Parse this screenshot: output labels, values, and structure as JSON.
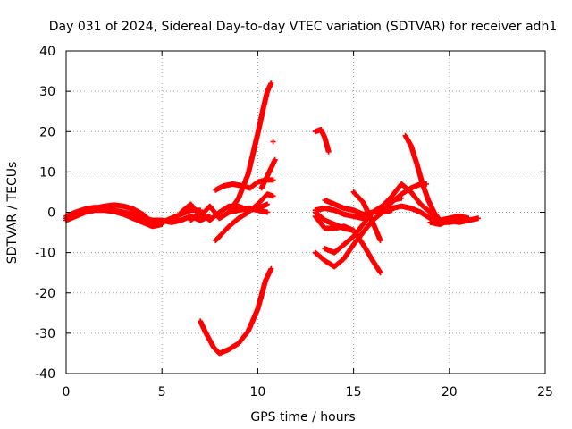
{
  "chart_data": {
    "type": "scatter",
    "title": "Day 031 of 2024, Sidereal Day-to-day VTEC variation (SDTVAR) for receiver adh1",
    "xlabel": "GPS time / hours",
    "ylabel": "SDTVAR / TECUs",
    "xlim": [
      0,
      25
    ],
    "ylim": [
      -40,
      40
    ],
    "xticks": [
      "0",
      "5",
      "10",
      "15",
      "20",
      "25"
    ],
    "yticks": [
      "40",
      "30",
      "20",
      "10",
      "0",
      "-10",
      "-20",
      "-30",
      "-40"
    ],
    "grid": true,
    "marker": "plus",
    "color": "#ff0000",
    "tracks": [
      {
        "points": [
          [
            0.0,
            -1.5
          ],
          [
            0.5,
            -0.5
          ],
          [
            1.0,
            0.5
          ],
          [
            1.5,
            1.0
          ],
          [
            2.0,
            1.5
          ],
          [
            2.5,
            1.8
          ],
          [
            3.0,
            1.5
          ],
          [
            3.5,
            0.8
          ],
          [
            4.0,
            -0.5
          ],
          [
            4.5,
            -2.5
          ],
          [
            5.0,
            -2.5
          ],
          [
            5.5,
            -1.5
          ],
          [
            6.0,
            -0.5
          ],
          [
            6.5,
            0.5
          ],
          [
            7.0,
            0.5
          ]
        ]
      },
      {
        "points": [
          [
            0.0,
            -1.0
          ],
          [
            0.5,
            0.0
          ],
          [
            1.0,
            0.8
          ],
          [
            1.5,
            1.2
          ],
          [
            2.0,
            1.0
          ],
          [
            2.5,
            0.5
          ],
          [
            3.0,
            0.0
          ],
          [
            3.5,
            -0.5
          ],
          [
            4.0,
            -1.5
          ],
          [
            4.5,
            -2.0
          ],
          [
            5.0,
            -2.0
          ],
          [
            5.5,
            -2.5
          ],
          [
            6.0,
            -2.0
          ],
          [
            6.5,
            -1.0
          ],
          [
            7.0,
            -2.0
          ],
          [
            7.5,
            -1.0
          ]
        ]
      },
      {
        "points": [
          [
            0.0,
            -2.0
          ],
          [
            0.5,
            -1.0
          ],
          [
            1.0,
            0.0
          ],
          [
            1.5,
            0.5
          ],
          [
            2.0,
            0.5
          ],
          [
            2.5,
            0.2
          ],
          [
            3.0,
            -0.5
          ],
          [
            3.5,
            -1.5
          ],
          [
            4.0,
            -2.5
          ],
          [
            4.5,
            -3.5
          ],
          [
            5.0,
            -3.0
          ]
        ]
      },
      {
        "points": [
          [
            6.0,
            0.0
          ],
          [
            6.5,
            2.0
          ],
          [
            7.0,
            -1.0
          ],
          [
            7.5,
            1.5
          ],
          [
            8.0,
            -1.5
          ],
          [
            8.5,
            0.0
          ],
          [
            9.0,
            0.5
          ],
          [
            9.5,
            1.0
          ],
          [
            10.0,
            0.5
          ],
          [
            10.5,
            0.0
          ]
        ]
      },
      {
        "points": [
          [
            6.5,
            -2.0
          ],
          [
            7.0,
            0.0
          ],
          [
            7.5,
            -2.0
          ],
          [
            8.0,
            0.0
          ],
          [
            8.5,
            1.5
          ],
          [
            9.0,
            1.5
          ],
          [
            9.5,
            0.5
          ],
          [
            10.0,
            1.0
          ],
          [
            10.5,
            2.0
          ]
        ]
      },
      {
        "points": [
          [
            7.8,
            -7.0
          ],
          [
            8.0,
            -6.0
          ],
          [
            8.5,
            -3.5
          ],
          [
            9.0,
            -1.5
          ],
          [
            9.5,
            0.0
          ],
          [
            10.0,
            2.0
          ],
          [
            10.5,
            4.5
          ],
          [
            10.8,
            4.0
          ]
        ]
      },
      {
        "points": [
          [
            7.8,
            5.5
          ],
          [
            8.2,
            6.5
          ],
          [
            8.7,
            7.0
          ],
          [
            9.2,
            6.5
          ],
          [
            9.6,
            6.0
          ],
          [
            10.0,
            7.5
          ],
          [
            10.4,
            8.0
          ],
          [
            10.8,
            8.0
          ]
        ]
      },
      {
        "points": [
          [
            10.2,
            6.0
          ],
          [
            10.5,
            9.0
          ],
          [
            10.8,
            12.0
          ],
          [
            10.9,
            13.0
          ]
        ]
      },
      {
        "points": [
          [
            8.5,
            0.0
          ],
          [
            9.0,
            3.5
          ],
          [
            9.5,
            9.5
          ],
          [
            10.0,
            19.5
          ],
          [
            10.3,
            26.0
          ],
          [
            10.5,
            30.0
          ],
          [
            10.7,
            32.0
          ]
        ]
      },
      {
        "points": [
          [
            7.0,
            -27.0
          ],
          [
            7.3,
            -30.0
          ],
          [
            7.7,
            -33.5
          ],
          [
            8.0,
            -35.0
          ],
          [
            8.5,
            -34.0
          ],
          [
            9.0,
            -32.5
          ],
          [
            9.5,
            -29.5
          ],
          [
            10.0,
            -24.0
          ],
          [
            10.4,
            -17.0
          ],
          [
            10.7,
            -14.0
          ]
        ]
      },
      {
        "points": [
          [
            13.0,
            20.0
          ],
          [
            13.3,
            20.5
          ],
          [
            13.5,
            18.5
          ],
          [
            13.7,
            15.0
          ]
        ]
      },
      {
        "points": [
          [
            13.0,
            0.0
          ],
          [
            13.5,
            -2.0
          ],
          [
            14.0,
            -3.0
          ],
          [
            14.5,
            -4.0
          ],
          [
            15.0,
            -4.5
          ]
        ]
      },
      {
        "points": [
          [
            13.0,
            -1.0
          ],
          [
            13.5,
            -4.0
          ],
          [
            14.0,
            -4.0
          ],
          [
            14.5,
            -3.5
          ],
          [
            15.0,
            -4.5
          ],
          [
            15.5,
            -8.0
          ],
          [
            16.0,
            -12.0
          ],
          [
            16.4,
            -15.0
          ]
        ]
      },
      {
        "points": [
          [
            13.0,
            -10.0
          ],
          [
            13.5,
            -12.0
          ],
          [
            14.0,
            -13.5
          ],
          [
            14.5,
            -11.5
          ],
          [
            15.0,
            -8.0
          ],
          [
            15.5,
            -5.0
          ],
          [
            16.0,
            -2.0
          ],
          [
            16.5,
            0.0
          ],
          [
            17.0,
            0.5
          ]
        ]
      },
      {
        "points": [
          [
            13.5,
            -9.0
          ],
          [
            14.0,
            -10.0
          ],
          [
            14.5,
            -8.0
          ],
          [
            15.0,
            -6.0
          ],
          [
            15.5,
            -3.0
          ],
          [
            16.0,
            0.0
          ],
          [
            16.5,
            1.5
          ],
          [
            17.0,
            3.0
          ],
          [
            17.5,
            3.5
          ]
        ]
      },
      {
        "points": [
          [
            13.5,
            3.0
          ],
          [
            14.0,
            2.0
          ],
          [
            14.5,
            1.0
          ],
          [
            15.0,
            0.5
          ],
          [
            15.5,
            -0.5
          ],
          [
            16.0,
            0.0
          ],
          [
            16.5,
            1.5
          ],
          [
            17.0,
            4.0
          ],
          [
            17.5,
            7.0
          ],
          [
            18.0,
            5.0
          ],
          [
            18.5,
            2.0
          ],
          [
            19.0,
            0.0
          ],
          [
            19.5,
            -2.5
          ],
          [
            20.0,
            -2.5
          ],
          [
            20.5,
            -2.0
          ],
          [
            21.0,
            -2.0
          ],
          [
            21.5,
            -1.5
          ]
        ]
      },
      {
        "points": [
          [
            13.0,
            0.5
          ],
          [
            13.5,
            1.0
          ],
          [
            14.0,
            0.5
          ],
          [
            14.5,
            -0.5
          ],
          [
            15.0,
            -1.0
          ],
          [
            15.5,
            -1.5
          ],
          [
            16.0,
            0.0
          ],
          [
            16.5,
            0.5
          ],
          [
            17.0,
            1.0
          ],
          [
            17.5,
            1.5
          ],
          [
            18.0,
            1.0
          ],
          [
            18.5,
            0.0
          ],
          [
            19.0,
            -1.5
          ],
          [
            19.5,
            -2.0
          ],
          [
            20.0,
            -1.5
          ],
          [
            20.5,
            -1.0
          ],
          [
            21.0,
            -1.5
          ]
        ]
      },
      {
        "points": [
          [
            15.0,
            5.0
          ],
          [
            15.5,
            2.5
          ],
          [
            16.0,
            -2.5
          ],
          [
            16.4,
            -7.0
          ]
        ]
      },
      {
        "points": [
          [
            16.0,
            -2.0
          ],
          [
            16.5,
            0.0
          ],
          [
            17.0,
            2.5
          ],
          [
            17.5,
            4.5
          ],
          [
            18.0,
            6.0
          ],
          [
            18.5,
            7.0
          ],
          [
            18.8,
            7.0
          ]
        ]
      },
      {
        "points": [
          [
            17.7,
            19.0
          ],
          [
            18.0,
            16.5
          ],
          [
            18.3,
            12.0
          ],
          [
            18.6,
            7.0
          ],
          [
            18.9,
            3.0
          ],
          [
            19.2,
            0.0
          ],
          [
            19.5,
            -2.0
          ],
          [
            19.8,
            -2.5
          ]
        ]
      },
      {
        "points": [
          [
            19.0,
            -2.5
          ],
          [
            19.5,
            -3.0
          ],
          [
            20.0,
            -2.0
          ],
          [
            20.5,
            -2.5
          ],
          [
            21.0,
            -2.0
          ]
        ]
      },
      {
        "points": [
          [
            10.8,
            17.5
          ]
        ]
      }
    ]
  }
}
